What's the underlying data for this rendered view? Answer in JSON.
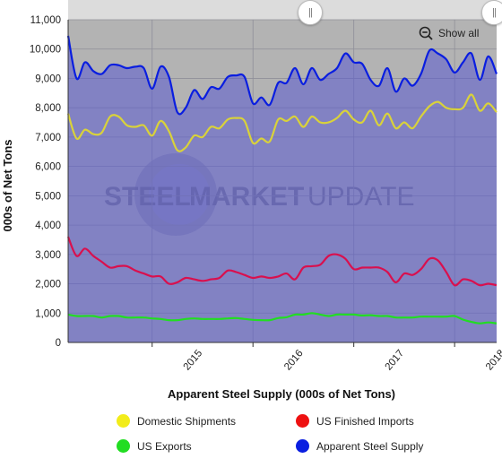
{
  "controls": {
    "show_all_label": "Show all"
  },
  "watermark": {
    "word1": "STEEL",
    "word2": "MARKET",
    "word3": "UPDATE"
  },
  "chart_data": {
    "type": "line",
    "xlabel": "Apparent Steel Supply (000s of Net Tons)",
    "ylabel": "000s of Net Tons",
    "ylim": [
      0,
      11000
    ],
    "yticks": [
      0,
      1000,
      2000,
      3000,
      4000,
      5000,
      6000,
      7000,
      8000,
      9000,
      10000,
      11000
    ],
    "ytick_labels": [
      "0",
      "1,000",
      "2,000",
      "3,000",
      "4,000",
      "5,000",
      "6,000",
      "7,000",
      "8,000",
      "9,000",
      "10,000",
      "11,000"
    ],
    "xlim": [
      "2014-03",
      "2018-06"
    ],
    "xticks": [
      "2015",
      "2016",
      "2017",
      "2018"
    ],
    "grid": true,
    "legend_position": "bottom",
    "x": [
      "2014-03",
      "2014-04",
      "2014-05",
      "2014-06",
      "2014-07",
      "2014-08",
      "2014-09",
      "2014-10",
      "2014-11",
      "2014-12",
      "2015-01",
      "2015-02",
      "2015-03",
      "2015-04",
      "2015-05",
      "2015-06",
      "2015-07",
      "2015-08",
      "2015-09",
      "2015-10",
      "2015-11",
      "2015-12",
      "2016-01",
      "2016-02",
      "2016-03",
      "2016-04",
      "2016-05",
      "2016-06",
      "2016-07",
      "2016-08",
      "2016-09",
      "2016-10",
      "2016-11",
      "2016-12",
      "2017-01",
      "2017-02",
      "2017-03",
      "2017-04",
      "2017-05",
      "2017-06",
      "2017-07",
      "2017-08",
      "2017-09",
      "2017-10",
      "2017-11",
      "2017-12",
      "2018-01",
      "2018-02",
      "2018-03",
      "2018-04",
      "2018-05",
      "2018-06"
    ],
    "series": [
      {
        "name": "Apparent Steel Supply",
        "color": "#0a1ee0",
        "values": [
          10450,
          9000,
          9550,
          9250,
          9150,
          9450,
          9450,
          9350,
          9400,
          9350,
          8650,
          9400,
          9050,
          7850,
          8000,
          8600,
          8300,
          8700,
          8650,
          9050,
          9100,
          9050,
          8150,
          8350,
          8100,
          8850,
          8850,
          9350,
          8800,
          9350,
          8950,
          9150,
          9350,
          9850,
          9550,
          9500,
          8950,
          8750,
          9350,
          8550,
          9000,
          8750,
          9150,
          9950,
          9850,
          9650,
          9200,
          9550,
          9850,
          8950,
          9750,
          9150
        ]
      },
      {
        "name": "Domestic Shipments",
        "color": "#d9d23a",
        "values": [
          7800,
          6950,
          7250,
          7100,
          7150,
          7700,
          7700,
          7400,
          7350,
          7400,
          7050,
          7550,
          7200,
          6550,
          6650,
          7050,
          7000,
          7350,
          7300,
          7600,
          7650,
          7550,
          6800,
          6950,
          6850,
          7600,
          7550,
          7700,
          7350,
          7700,
          7500,
          7500,
          7650,
          7900,
          7600,
          7500,
          7900,
          7400,
          7800,
          7300,
          7500,
          7300,
          7700,
          8050,
          8200,
          8000,
          7950,
          8000,
          8450,
          7900,
          8150,
          7850
        ]
      },
      {
        "name": "US Finished Imports",
        "color": "#d9104e",
        "values": [
          3600,
          2950,
          3200,
          2950,
          2750,
          2550,
          2600,
          2600,
          2450,
          2350,
          2250,
          2250,
          2000,
          2050,
          2200,
          2150,
          2100,
          2150,
          2200,
          2450,
          2400,
          2300,
          2200,
          2250,
          2200,
          2250,
          2350,
          2150,
          2550,
          2600,
          2650,
          2950,
          3000,
          2850,
          2500,
          2550,
          2550,
          2550,
          2400,
          2050,
          2350,
          2300,
          2500,
          2850,
          2800,
          2400,
          1950,
          2150,
          2100,
          1950,
          2000,
          1950
        ]
      },
      {
        "name": "US Exports",
        "color": "#22dd22",
        "values": [
          950,
          900,
          900,
          900,
          850,
          900,
          900,
          850,
          850,
          850,
          820,
          800,
          760,
          760,
          800,
          820,
          800,
          800,
          800,
          820,
          830,
          800,
          770,
          760,
          760,
          830,
          860,
          950,
          950,
          1000,
          950,
          900,
          950,
          950,
          950,
          920,
          930,
          900,
          900,
          850,
          850,
          850,
          880,
          880,
          880,
          880,
          900,
          780,
          700,
          650,
          680,
          650
        ]
      }
    ],
    "legend_order": [
      "Domestic Shipments",
      "US Finished Imports",
      "US Exports",
      "Apparent Steel Supply"
    ]
  }
}
